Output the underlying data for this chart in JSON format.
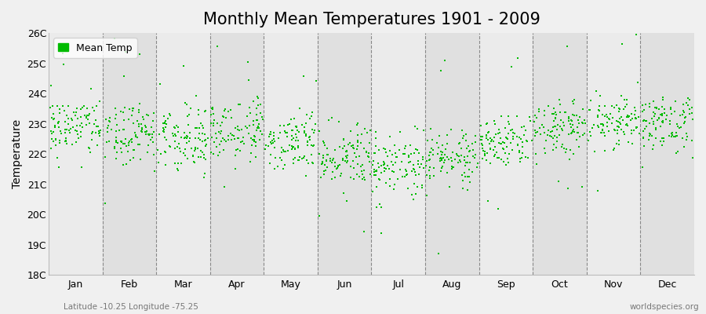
{
  "title": "Monthly Mean Temperatures 1901 - 2009",
  "ylabel": "Temperature",
  "ylim": [
    18,
    26
  ],
  "yticks": [
    18,
    19,
    20,
    21,
    22,
    23,
    24,
    25,
    26
  ],
  "ytick_labels": [
    "18C",
    "19C",
    "20C",
    "21C",
    "22C",
    "23C",
    "24C",
    "25C",
    "26C"
  ],
  "months": [
    "Jan",
    "Feb",
    "Mar",
    "Apr",
    "May",
    "Jun",
    "Jul",
    "Aug",
    "Sep",
    "Oct",
    "Nov",
    "Dec"
  ],
  "background_color": "#f0f0f0",
  "plot_bg_color": "#e8e8e8",
  "band_color_light": "#ebebeb",
  "band_color_dark": "#e0e0e0",
  "marker_color": "#00bb00",
  "legend_label": "Mean Temp",
  "bottom_left_text": "Latitude -10.25 Longitude -75.25",
  "bottom_right_text": "worldspecies.org",
  "title_fontsize": 15,
  "label_fontsize": 10,
  "tick_fontsize": 9,
  "n_years": 109,
  "monthly_means": [
    22.9,
    22.7,
    22.6,
    22.7,
    22.4,
    21.9,
    21.6,
    21.9,
    22.4,
    22.8,
    23.1,
    23.0
  ],
  "monthly_stds": [
    0.5,
    0.48,
    0.52,
    0.48,
    0.45,
    0.52,
    0.52,
    0.45,
    0.4,
    0.45,
    0.5,
    0.45
  ],
  "seed": 42,
  "dashed_line_positions": [
    1,
    2,
    3,
    4,
    5,
    6,
    7,
    8,
    9,
    10,
    11
  ]
}
